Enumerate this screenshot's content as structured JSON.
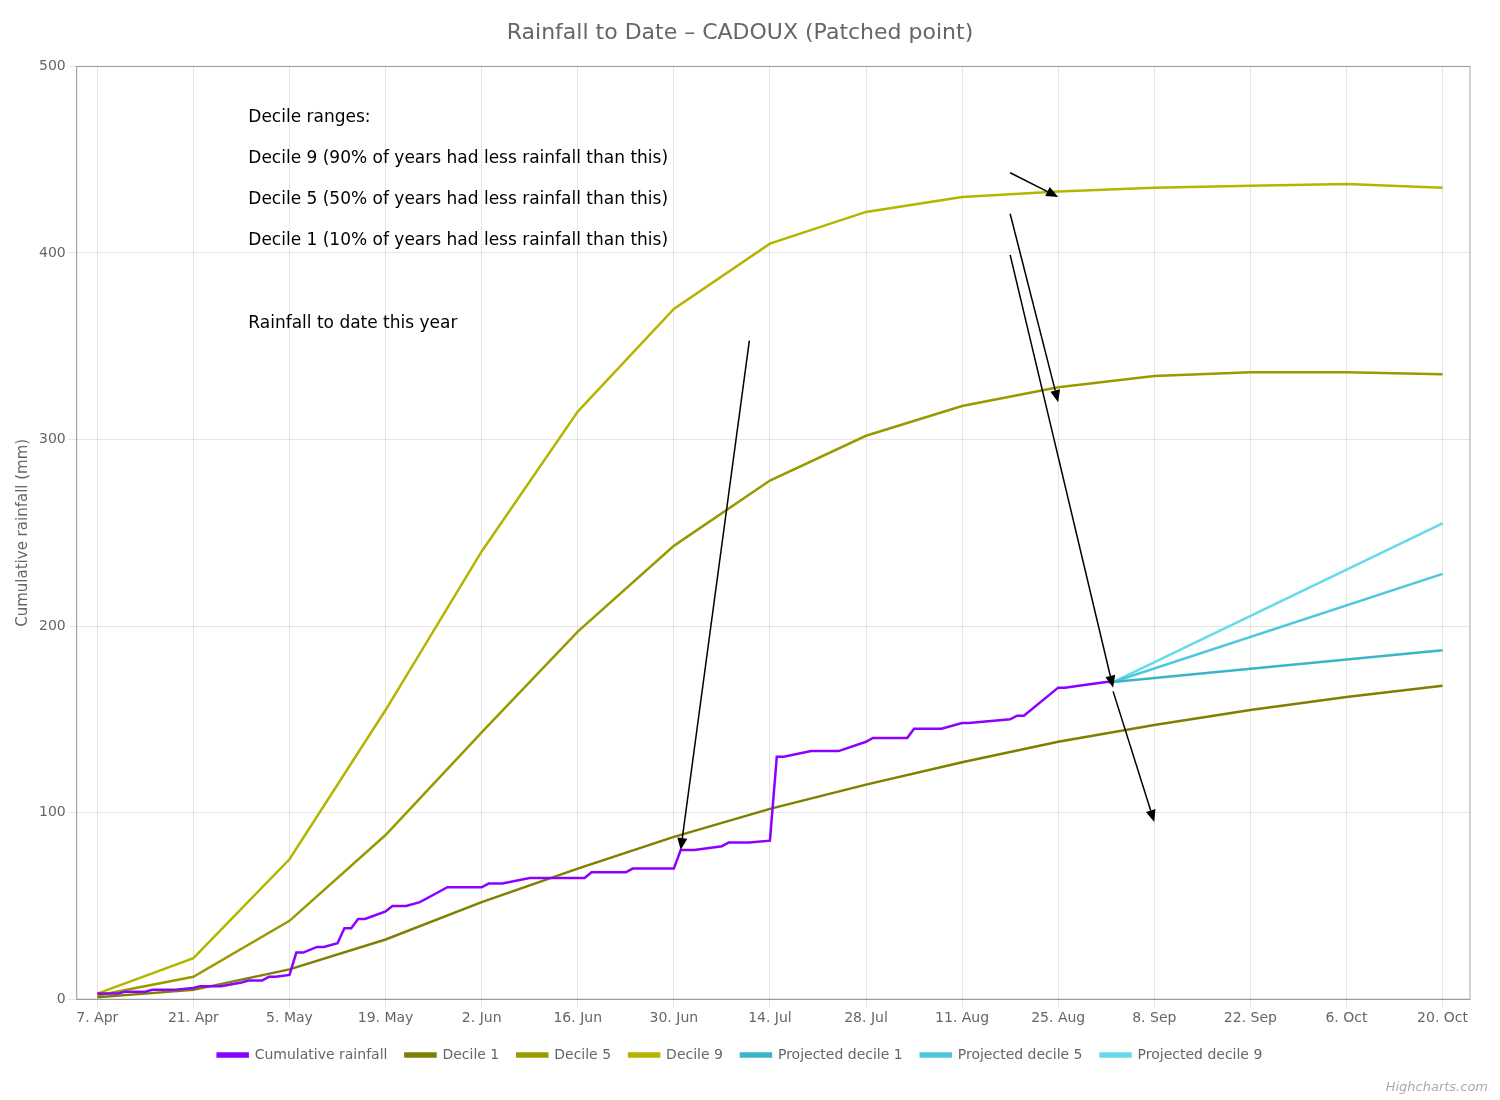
{
  "chart_data": {
    "type": "line",
    "title": "Rainfall to Date – CADOUX (Patched point)",
    "ylabel": "Cumulative rainfall (mm)",
    "credits": "Highcharts.com",
    "xlim": [
      -3,
      200
    ],
    "xticks": [
      {
        "value": 0,
        "label": "7. Apr"
      },
      {
        "value": 14,
        "label": "21. Apr"
      },
      {
        "value": 28,
        "label": "5. May"
      },
      {
        "value": 42,
        "label": "19. May"
      },
      {
        "value": 56,
        "label": "2. Jun"
      },
      {
        "value": 70,
        "label": "16. Jun"
      },
      {
        "value": 84,
        "label": "30. Jun"
      },
      {
        "value": 98,
        "label": "14. Jul"
      },
      {
        "value": 112,
        "label": "28. Jul"
      },
      {
        "value": 126,
        "label": "11. Aug"
      },
      {
        "value": 140,
        "label": "25. Aug"
      },
      {
        "value": 154,
        "label": "8. Sep"
      },
      {
        "value": 168,
        "label": "22. Sep"
      },
      {
        "value": 182,
        "label": "6. Oct"
      },
      {
        "value": 196,
        "label": "20. Oct"
      }
    ],
    "ylim": [
      0,
      500
    ],
    "yticks": [
      0,
      100,
      200,
      300,
      400,
      500
    ],
    "grid": true,
    "legend": "bottom",
    "series": [
      {
        "name": "Cumulative rainfall",
        "color": "#8b00ff",
        "x": [
          0,
          3,
          4,
          7,
          8,
          11,
          14,
          15,
          18,
          21,
          22,
          24,
          25,
          26,
          28,
          29,
          30,
          32,
          33,
          35,
          36,
          37,
          38,
          39,
          42,
          43,
          45,
          47,
          50,
          51,
          53,
          56,
          57,
          59,
          63,
          67,
          70,
          71,
          72,
          73,
          77,
          78,
          80,
          84,
          85,
          87,
          91,
          92,
          95,
          98,
          99,
          100,
          104,
          105,
          108,
          112,
          113,
          114,
          118,
          119,
          120,
          123,
          126,
          127,
          133,
          134,
          135,
          140,
          141,
          143,
          147,
          148
        ],
        "values": [
          3,
          3,
          4,
          4,
          5,
          5,
          6,
          7,
          7,
          9,
          10,
          10,
          12,
          12,
          13,
          25,
          25,
          28,
          28,
          30,
          38,
          38,
          43,
          43,
          47,
          50,
          50,
          52,
          58,
          60,
          60,
          60,
          62,
          62,
          65,
          65,
          65,
          65,
          68,
          68,
          68,
          70,
          70,
          70,
          80,
          80,
          82,
          84,
          84,
          85,
          130,
          130,
          133,
          133,
          133,
          138,
          140,
          140,
          140,
          145,
          145,
          145,
          148,
          148,
          150,
          152,
          152,
          167,
          167,
          168,
          170,
          170
        ]
      },
      {
        "name": "Decile 1",
        "color": "#7f7f00",
        "x": [
          0,
          14,
          28,
          42,
          56,
          70,
          84,
          98,
          112,
          126,
          140,
          154,
          168,
          182,
          196
        ],
        "values": [
          1,
          5,
          16,
          32,
          52,
          70,
          87,
          102,
          115,
          127,
          138,
          147,
          155,
          162,
          168
        ]
      },
      {
        "name": "Decile 5",
        "color": "#9a9a00",
        "x": [
          0,
          14,
          28,
          42,
          56,
          70,
          84,
          98,
          112,
          126,
          140,
          154,
          168,
          182,
          196
        ],
        "values": [
          2,
          12,
          42,
          88,
          143,
          197,
          243,
          278,
          302,
          318,
          328,
          334,
          336,
          336,
          335
        ]
      },
      {
        "name": "Decile 9",
        "color": "#b5b500",
        "x": [
          0,
          14,
          28,
          42,
          56,
          70,
          84,
          98,
          112,
          126,
          140,
          154,
          168,
          182,
          196
        ],
        "values": [
          3,
          22,
          75,
          155,
          240,
          315,
          370,
          405,
          422,
          430,
          433,
          435,
          436,
          437,
          435
        ]
      },
      {
        "name": "Projected decile 1",
        "color": "#3ab5c8",
        "x": [
          148,
          196
        ],
        "values": [
          170,
          187
        ]
      },
      {
        "name": "Projected decile 5",
        "color": "#4dc8db",
        "x": [
          148,
          196
        ],
        "values": [
          170,
          228
        ]
      },
      {
        "name": "Projected decile 9",
        "color": "#65daea",
        "x": [
          148,
          196
        ],
        "values": [
          170,
          255
        ]
      }
    ],
    "annotations": [
      {
        "text": "Decile ranges:",
        "x": 22,
        "y": 470
      },
      {
        "text": "Decile 9 (90% of years had less rainfall than this)",
        "x": 22,
        "y": 448
      },
      {
        "text": "Decile 5 (50% of years had less rainfall than this)",
        "x": 22,
        "y": 426
      },
      {
        "text": "Decile 1 (10% of years had less rainfall than this)",
        "x": 22,
        "y": 404
      },
      {
        "text": "Rainfall to date this year",
        "x": 22,
        "y": 360
      }
    ],
    "arrows": [
      {
        "from": [
          133,
          443
        ],
        "to": [
          140,
          430
        ]
      },
      {
        "from": [
          133,
          421
        ],
        "to": [
          140,
          320
        ]
      },
      {
        "from": [
          133,
          399
        ],
        "to": [
          148,
          167
        ]
      },
      {
        "from": [
          95,
          353
        ],
        "to": [
          85,
          80
        ]
      },
      {
        "from": [
          148,
          165
        ],
        "to": [
          154,
          95
        ]
      }
    ]
  }
}
